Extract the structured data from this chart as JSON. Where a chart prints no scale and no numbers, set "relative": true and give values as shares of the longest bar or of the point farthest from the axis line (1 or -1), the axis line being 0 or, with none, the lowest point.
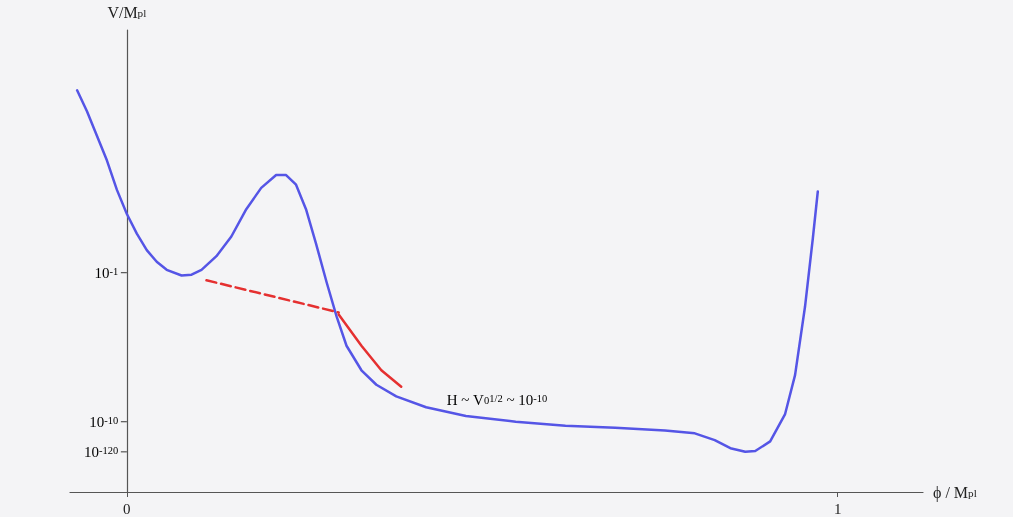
{
  "chart_data": {
    "type": "line",
    "relative": true,
    "xlabel": "ϕ / M$_{pl}$",
    "ylabel": "V/M$_{pl}$",
    "xlim": [
      -0.08,
      1.12
    ],
    "xticks": [
      0,
      1
    ],
    "marker": "none",
    "series": [
      {
        "color": "#5555e6",
        "line_style": "solid",
        "x": [
          -0.07,
          -0.056,
          -0.042,
          -0.028,
          -0.014,
          0,
          0.014,
          0.028,
          0.042,
          0.056,
          0.077,
          0.091,
          0.105,
          0.126,
          0.147,
          0.168,
          0.189,
          0.21,
          0.224,
          0.238,
          0.252,
          0.266,
          0.281,
          0.295,
          0.309,
          0.33,
          0.351,
          0.379,
          0.421,
          0.477,
          0.547,
          0.617,
          0.687,
          0.757,
          0.799,
          0.827,
          0.849,
          0.87,
          0.884,
          0.905,
          0.926,
          0.94,
          0.954,
          0.965,
          0.972
        ],
        "values": [
          1,
          0.947,
          0.886,
          0.825,
          0.752,
          0.692,
          0.643,
          0.602,
          0.573,
          0.553,
          0.539,
          0.541,
          0.553,
          0.587,
          0.636,
          0.704,
          0.757,
          0.789,
          0.789,
          0.765,
          0.704,
          0.619,
          0.522,
          0.437,
          0.364,
          0.303,
          0.267,
          0.238,
          0.211,
          0.189,
          0.175,
          0.165,
          0.16,
          0.153,
          0.146,
          0.129,
          0.109,
          0.1,
          0.102,
          0.126,
          0.194,
          0.291,
          0.461,
          0.631,
          0.748
        ]
      },
      {
        "color": "#e53030",
        "line_style": "dashed",
        "x": [
          0.112,
          0.298
        ],
        "values": [
          0.527,
          0.447
        ]
      },
      {
        "color": "#e53030",
        "line_style": "solid",
        "x": [
          0.298,
          0.33,
          0.358,
          0.386
        ],
        "values": [
          0.442,
          0.364,
          0.303,
          0.262
        ]
      }
    ],
    "annotations": [
      "10$^{-1}$",
      "10$^{-10}$",
      "10$^{-120}$",
      "H ~ V$_{0}$$^{1/2}$ ~ 10$^{-10}$"
    ]
  }
}
